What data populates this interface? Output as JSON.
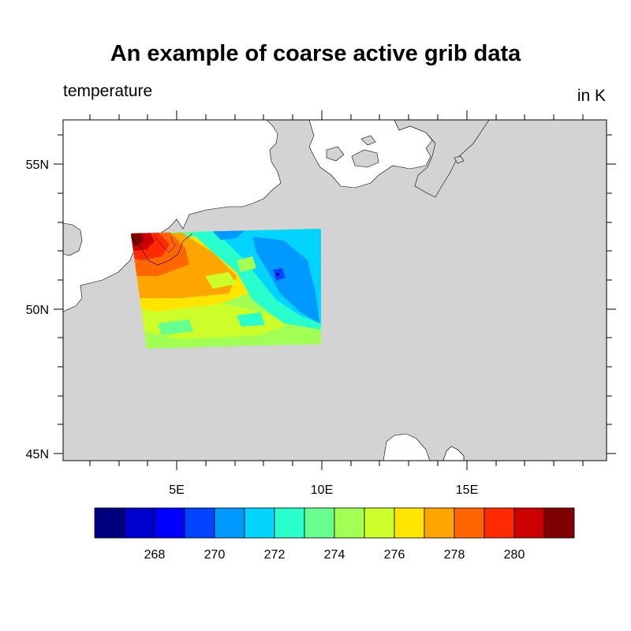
{
  "title": "An example of coarse active grib data",
  "left_string": "temperature",
  "right_string": "in K",
  "map": {
    "lat_ticks": [
      "55N",
      "50N",
      "45N"
    ],
    "lon_ticks": [
      "5E",
      "10E",
      "15E"
    ],
    "land_color": "#d3d3d3",
    "ocean_color": "#ffffff",
    "data_region": "coarse grid patch roughly 3.5E–10E, 48.5N–52.7N"
  },
  "colorbar": {
    "colors": [
      "#00007f",
      "#0000cc",
      "#0000ff",
      "#0044ff",
      "#0099ff",
      "#00d4ff",
      "#29ffcd",
      "#66ff90",
      "#a2ff54",
      "#ccff29",
      "#ffe500",
      "#ffa500",
      "#ff6600",
      "#ff2a00",
      "#cc0000",
      "#7f0000"
    ],
    "labels": [
      "268",
      "270",
      "272",
      "274",
      "276",
      "278",
      "280"
    ]
  }
}
